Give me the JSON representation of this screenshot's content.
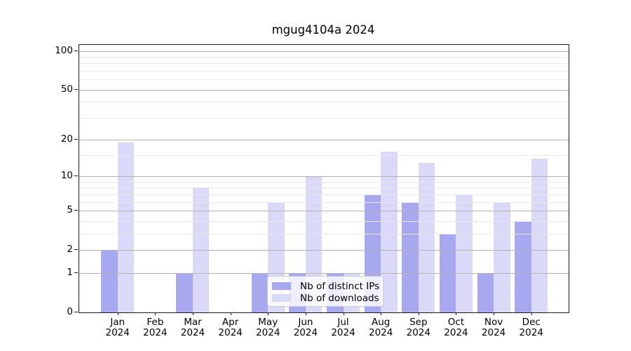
{
  "title": "mgug4104a 2024",
  "chart_data": {
    "type": "bar",
    "title": "mgug4104a 2024",
    "categories": [
      "Jan",
      "Feb",
      "Mar",
      "Apr",
      "May",
      "Jun",
      "Jul",
      "Aug",
      "Sep",
      "Oct",
      "Nov",
      "Dec"
    ],
    "x_year_label": "2024",
    "series": [
      {
        "name": "Nb of distinct IPs",
        "color": "#a8a8f0",
        "values": [
          2,
          0,
          1,
          0,
          1,
          1,
          1,
          7,
          6,
          3,
          1,
          4
        ]
      },
      {
        "name": "Nb of downloads",
        "color": "#dadaf8",
        "values": [
          19,
          0,
          8,
          0,
          6,
          10,
          1,
          16,
          13,
          7,
          6,
          14
        ]
      }
    ],
    "yscale": "log10(1+y)",
    "yticks": [
      0,
      1,
      2,
      5,
      10,
      20,
      50,
      100
    ],
    "minor_gridlines": [
      3,
      4,
      6,
      7,
      8,
      9,
      15,
      30,
      40,
      60,
      70,
      80,
      90
    ],
    "ylim": [
      0,
      111.5
    ],
    "grid": "on",
    "legend_position": "lower center",
    "colors": {
      "grid_major": "#b3b3b3",
      "grid_minor": "#e9e9e9",
      "axis": "#1a1a1a",
      "background": "#ffffff"
    }
  }
}
